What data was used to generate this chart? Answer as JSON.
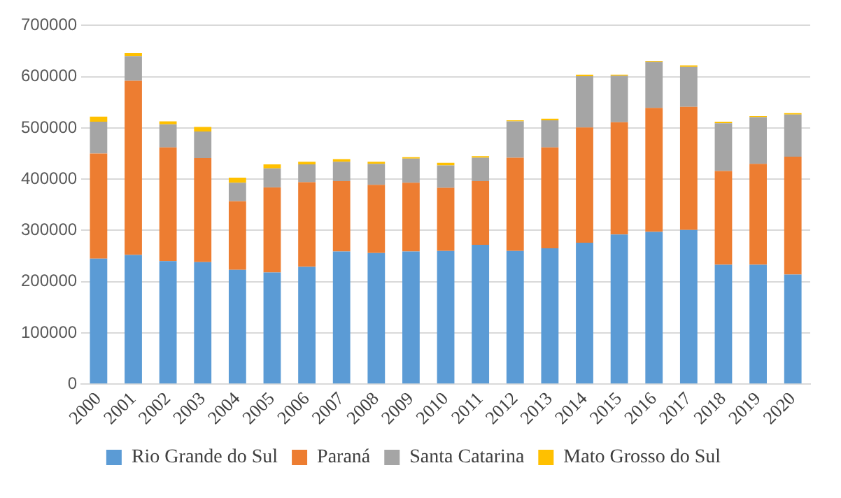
{
  "chart_data": {
    "type": "bar",
    "stacked": true,
    "categories": [
      "2000",
      "2001",
      "2002",
      "2003",
      "2004",
      "2005",
      "2006",
      "2007",
      "2008",
      "2009",
      "2010",
      "2011",
      "2012",
      "2013",
      "2014",
      "2015",
      "2016",
      "2017",
      "2018",
      "2019",
      "2020"
    ],
    "series": [
      {
        "name": "Rio Grande do Sul",
        "color": "#5b9bd5",
        "values": [
          245000,
          252000,
          240000,
          238000,
          223000,
          218000,
          229000,
          259000,
          256000,
          259000,
          260000,
          272000,
          260000,
          265000,
          276000,
          292000,
          297000,
          301000,
          233000,
          233000,
          214000
        ]
      },
      {
        "name": "Paraná",
        "color": "#ed7d31",
        "values": [
          205000,
          340000,
          222000,
          203000,
          134000,
          166000,
          165000,
          137000,
          133000,
          134000,
          123000,
          124000,
          182000,
          197000,
          225000,
          219000,
          242000,
          240000,
          183000,
          197000,
          230000
        ]
      },
      {
        "name": "Santa Catarina",
        "color": "#a5a5a5",
        "values": [
          62000,
          48000,
          45000,
          52000,
          36000,
          37000,
          35000,
          38000,
          41000,
          47000,
          44000,
          46000,
          71000,
          53000,
          100000,
          91000,
          90000,
          78000,
          93000,
          91000,
          82000
        ]
      },
      {
        "name": "Mato Grosso do Sul",
        "color": "#ffc000",
        "values": [
          10000,
          6000,
          6000,
          9000,
          10000,
          8000,
          5000,
          5000,
          4000,
          3000,
          5000,
          3000,
          2000,
          3000,
          3000,
          2000,
          2000,
          3000,
          3000,
          2000,
          3000
        ]
      }
    ],
    "ylim": [
      0,
      700000
    ],
    "yticks": [
      0,
      100000,
      200000,
      300000,
      400000,
      500000,
      600000,
      700000
    ],
    "grid": "y",
    "legend": "bottom"
  }
}
